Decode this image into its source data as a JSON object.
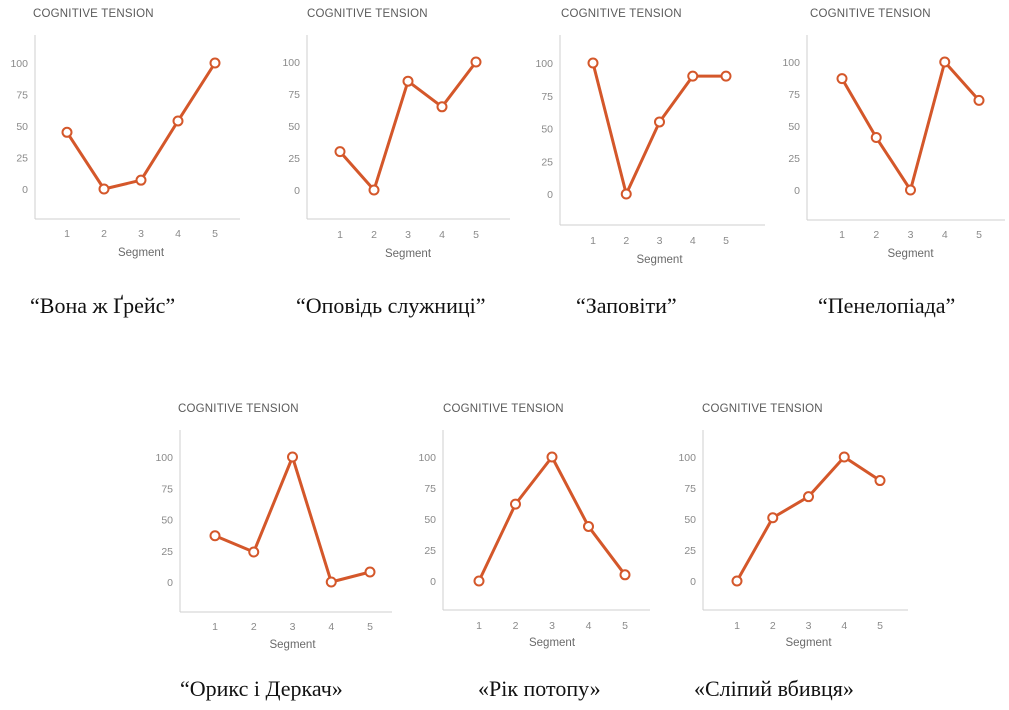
{
  "colors": {
    "line": "#d4572a",
    "axis": "#cfcfcf",
    "marker_fill": "#ffffff"
  },
  "chart_data": [
    {
      "type": "line",
      "title": "COGNITIVE TENSION",
      "xlabel": "Segment",
      "ylabel": "",
      "ylim": [
        0,
        100
      ],
      "yticks": [
        "100",
        "75",
        "50",
        "25",
        "0"
      ],
      "categories": [
        "1",
        "2",
        "3",
        "4",
        "5"
      ],
      "values": [
        45,
        0,
        7,
        54,
        100
      ],
      "caption": "“Вона ж Ґрейс”"
    },
    {
      "type": "line",
      "title": "COGNITIVE TENSION",
      "xlabel": "Segment",
      "ylabel": "",
      "ylim": [
        0,
        100
      ],
      "yticks": [
        "100",
        "75",
        "50",
        "25",
        "0"
      ],
      "categories": [
        "1",
        "2",
        "3",
        "4",
        "5"
      ],
      "values": [
        30,
        0,
        85,
        65,
        100
      ],
      "caption": "“Оповідь служниці”"
    },
    {
      "type": "line",
      "title": "COGNITIVE TENSION",
      "xlabel": "Segment",
      "ylabel": "",
      "ylim": [
        0,
        100
      ],
      "yticks": [
        "100",
        "75",
        "50",
        "25",
        "0"
      ],
      "categories": [
        "1",
        "2",
        "3",
        "4",
        "5"
      ],
      "values": [
        100,
        0,
        55,
        90,
        90
      ],
      "caption": "“Заповіти”"
    },
    {
      "type": "line",
      "title": "COGNITIVE TENSION",
      "xlabel": "Segment",
      "ylabel": "",
      "ylim": [
        0,
        100
      ],
      "yticks": [
        "100",
        "75",
        "50",
        "25",
        "0"
      ],
      "categories": [
        "1",
        "2",
        "3",
        "4",
        "5"
      ],
      "values": [
        87,
        41,
        0,
        100,
        70
      ],
      "caption": "“Пенелопіада”"
    },
    {
      "type": "line",
      "title": "COGNITIVE TENSION",
      "xlabel": "Segment",
      "ylabel": "",
      "ylim": [
        0,
        100
      ],
      "yticks": [
        "100",
        "75",
        "50",
        "25",
        "0"
      ],
      "categories": [
        "1",
        "2",
        "3",
        "4",
        "5"
      ],
      "values": [
        37,
        24,
        100,
        0,
        8
      ],
      "caption": "“Орикс і Деркач»"
    },
    {
      "type": "line",
      "title": "COGNITIVE TENSION",
      "xlabel": "Segment",
      "ylabel": "",
      "ylim": [
        0,
        100
      ],
      "yticks": [
        "100",
        "75",
        "50",
        "25",
        "0"
      ],
      "categories": [
        "1",
        "2",
        "3",
        "4",
        "5"
      ],
      "values": [
        0,
        62,
        100,
        44,
        5
      ],
      "caption": "«Рік потопу»"
    },
    {
      "type": "line",
      "title": "COGNITIVE TENSION",
      "xlabel": "Segment",
      "ylabel": "",
      "ylim": [
        0,
        100
      ],
      "yticks": [
        "100",
        "75",
        "50",
        "25",
        "0"
      ],
      "categories": [
        "1",
        "2",
        "3",
        "4",
        "5"
      ],
      "values": [
        0,
        51,
        68,
        100,
        81
      ],
      "caption": "«Сліпий вбивця»"
    }
  ]
}
